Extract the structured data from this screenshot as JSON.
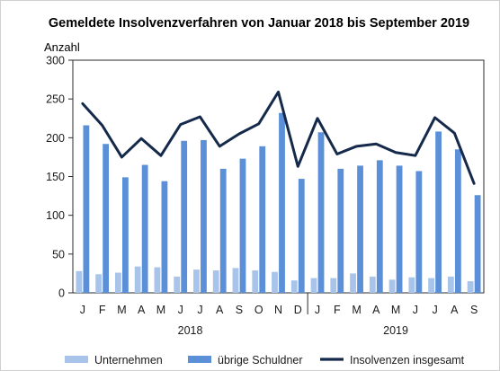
{
  "chart_data": {
    "type": "bar",
    "title": "Gemeldete Insolvenzverfahren von Januar 2018 bis September 2019",
    "ylabel": "Anzahl",
    "xlabel": "",
    "ylim": [
      0,
      300
    ],
    "yticks": [
      "0",
      "50",
      "100",
      "150",
      "200",
      "250",
      "300"
    ],
    "categories": [
      "J",
      "F",
      "M",
      "A",
      "M",
      "J",
      "J",
      "A",
      "S",
      "O",
      "N",
      "D",
      "J",
      "F",
      "M",
      "A",
      "M",
      "J",
      "J",
      "A",
      "S"
    ],
    "year_groups": [
      {
        "label": "2018",
        "start": 0,
        "end": 11
      },
      {
        "label": "2019",
        "start": 12,
        "end": 20
      }
    ],
    "series": [
      {
        "name": "Unternehmen",
        "type": "bar",
        "color": "#a9c4ea",
        "values": [
          28,
          24,
          26,
          34,
          33,
          21,
          30,
          29,
          32,
          29,
          27,
          16,
          19,
          19,
          25,
          21,
          17,
          20,
          19,
          21,
          15
        ]
      },
      {
        "name": "übrige Schuldner",
        "type": "bar",
        "color": "#5b8fd8",
        "values": [
          216,
          192,
          149,
          165,
          144,
          196,
          197,
          160,
          173,
          189,
          232,
          147,
          207,
          160,
          164,
          171,
          164,
          157,
          208,
          185,
          126
        ]
      },
      {
        "name": "Insolvenzen insgesamt",
        "type": "line",
        "color": "#15294b",
        "values": [
          244,
          216,
          175,
          199,
          177,
          217,
          227,
          189,
          205,
          218,
          259,
          163,
          225,
          179,
          189,
          192,
          181,
          177,
          226,
          206,
          141
        ]
      }
    ],
    "grid": false,
    "legend": "bottom"
  }
}
